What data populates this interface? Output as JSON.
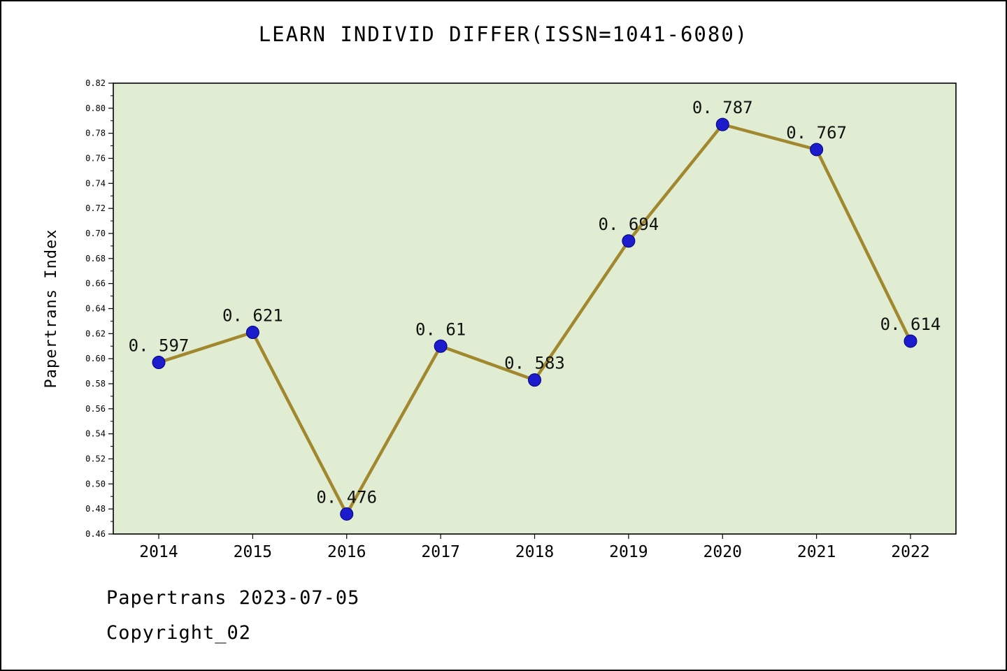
{
  "chart_data": {
    "type": "line",
    "title": "LEARN INDIVID DIFFER(ISSN=1041-6080)",
    "ylabel": "Papertrans Index",
    "xlabel": "",
    "x": [
      2014,
      2015,
      2016,
      2017,
      2018,
      2019,
      2020,
      2021,
      2022
    ],
    "values": [
      0.597,
      0.621,
      0.476,
      0.61,
      0.583,
      0.694,
      0.787,
      0.767,
      0.614
    ],
    "point_labels": [
      "0. 597",
      "0. 621",
      "0. 476",
      "0. 61",
      "0. 583",
      "0. 694",
      "0. 787",
      "0. 767",
      "0. 614"
    ],
    "ylim": [
      0.46,
      0.82
    ],
    "ytick_step": 0.02,
    "grid": false,
    "legend": "none",
    "colors": {
      "line": "#a1882e",
      "marker": "#1c1ccd",
      "marker_edge": "#000080",
      "plot_bg": "#e0edd3",
      "axis": "#000000",
      "text": "#000000"
    }
  },
  "footer": {
    "line1": "Papertrans 2023-07-05",
    "line2": "Copyright_02"
  }
}
